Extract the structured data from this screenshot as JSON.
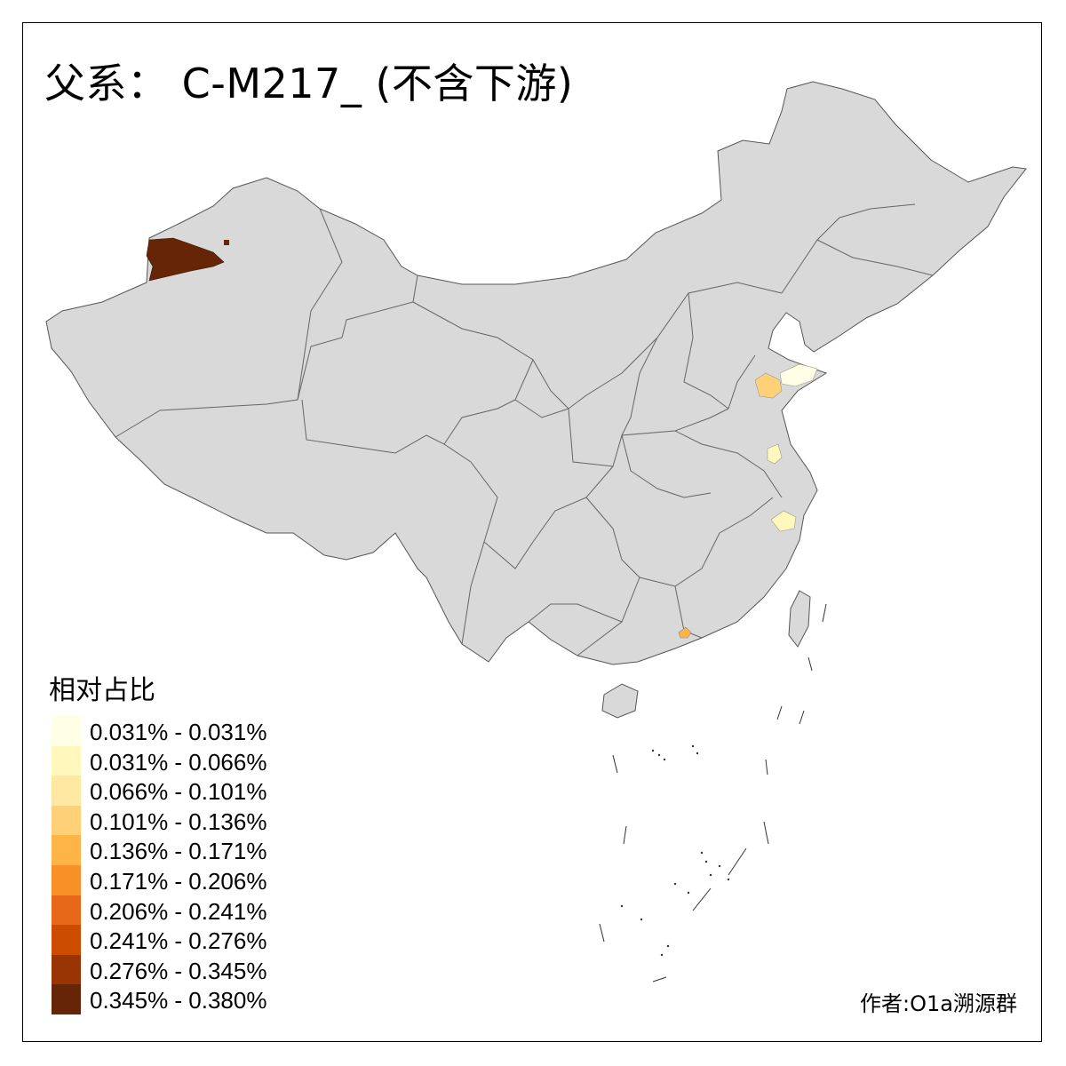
{
  "title": "父系： C-M217_ (不含下游)",
  "legend": {
    "title": "相对占比",
    "items": [
      {
        "label": "0.031% - 0.031%",
        "color": "#FFFFE5"
      },
      {
        "label": "0.031% - 0.066%",
        "color": "#FFF7BC"
      },
      {
        "label": "0.066% - 0.101%",
        "color": "#FEE8A2"
      },
      {
        "label": "0.101% - 0.136%",
        "color": "#FED179"
      },
      {
        "label": "0.136% - 0.171%",
        "color": "#FEB446"
      },
      {
        "label": "0.171% - 0.206%",
        "color": "#F98F27"
      },
      {
        "label": "0.206% - 0.241%",
        "color": "#E8681A"
      },
      {
        "label": "0.241% - 0.276%",
        "color": "#CC4C02"
      },
      {
        "label": "0.276% - 0.345%",
        "color": "#993404"
      },
      {
        "label": "0.345% - 0.380%",
        "color": "#662506"
      }
    ]
  },
  "credit": "作者:O1a溯源群",
  "colors": {
    "base_region": "#D9D9D9",
    "border": "#555555",
    "highest": "#662506"
  }
}
